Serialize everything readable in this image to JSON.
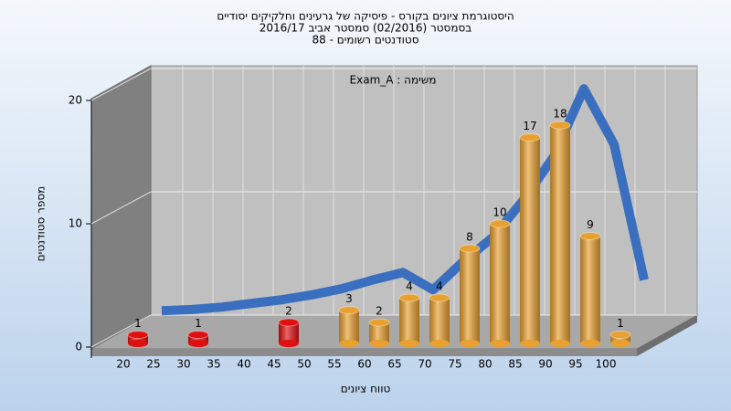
{
  "chart_data": {
    "type": "bar",
    "title": "היסטוגרמת ציונים בקורס - פיסיקה של גרעינים וחלקיקים יסודיים",
    "subtitle": "בסמסטר (02/2016) סמסטר אביב 2016/17",
    "subtitle2": "סטודנטים רשומים - 88",
    "annotation": "משימה : Exam_A",
    "x_label": "טווח ציונים",
    "y_label": "מספר סטודנטים",
    "categories": [
      "20",
      "25",
      "30",
      "35",
      "40",
      "45",
      "50",
      "55",
      "60",
      "65",
      "70",
      "75",
      "80",
      "85",
      "90",
      "95",
      "100"
    ],
    "values": [
      1,
      null,
      1,
      null,
      null,
      2,
      null,
      3,
      2,
      4,
      4,
      8,
      10,
      17,
      18,
      9,
      1
    ],
    "colors": [
      "#e01010",
      null,
      "#e01010",
      null,
      null,
      "#e01010",
      null,
      "#e8a030",
      "#e8a030",
      "#e8a030",
      "#e8a030",
      "#e8a030",
      "#e8a030",
      "#e8a030",
      "#e8a030",
      "#e8a030",
      "#e8a030"
    ],
    "curve": {
      "color": "#3a6fc0",
      "values": [
        0.5,
        0.6,
        0.8,
        1.1,
        1.4,
        1.8,
        2.3,
        3,
        3.6,
        2.2,
        4.5,
        6.5,
        9.5,
        13,
        18.5,
        14,
        3
      ]
    },
    "ylim": [
      0,
      20
    ],
    "yticks": [
      0,
      10,
      20
    ],
    "grid": true
  }
}
